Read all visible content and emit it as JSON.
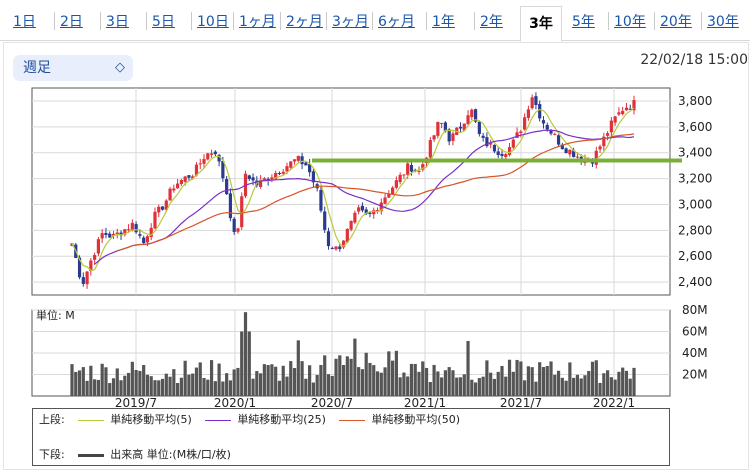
{
  "tabs": [
    {
      "label": "1日",
      "active": false
    },
    {
      "label": "2日",
      "active": false
    },
    {
      "label": "3日",
      "active": false
    },
    {
      "label": "5日",
      "active": false
    },
    {
      "label": "10日",
      "active": false
    },
    {
      "label": "1ヶ月",
      "active": false
    },
    {
      "label": "2ヶ月",
      "active": false
    },
    {
      "label": "3ヶ月",
      "active": false
    },
    {
      "label": "6ヶ月",
      "active": false
    },
    {
      "label": "1年",
      "active": false
    },
    {
      "label": "2年",
      "active": false
    },
    {
      "label": "3年",
      "active": true
    },
    {
      "label": "5年",
      "active": false
    },
    {
      "label": "10年",
      "active": false
    },
    {
      "label": "20年",
      "active": false
    },
    {
      "label": "30年",
      "active": false
    }
  ],
  "period_select": {
    "value": "週足"
  },
  "timestamp": "22/02/18 15:00",
  "chart_data": [
    {
      "type": "candlestick",
      "x_ticks": [
        "2019/7",
        "2020/1",
        "2020/7",
        "2021/1",
        "2021/7",
        "2022/1"
      ],
      "y_ticks": [
        2400,
        2600,
        2800,
        3000,
        3200,
        3400,
        3600,
        3800
      ],
      "ylim": [
        2300,
        3900
      ],
      "grid": true,
      "support_line": {
        "value": 3340,
        "color": "#7ab03a",
        "from": "2020/7",
        "to": "end"
      },
      "series": [
        {
          "name": "単純移動平均(5)",
          "color": "#b8c93a"
        },
        {
          "name": "単純移動平均(25)",
          "color": "#7a2fc9"
        },
        {
          "name": "単純移動平均(50)",
          "color": "#d8552a"
        }
      ],
      "anchors": [
        2700,
        2380,
        2600,
        2780,
        2750,
        2800,
        2850,
        2700,
        2900,
        3000,
        3150,
        3200,
        3250,
        3380,
        3420,
        3150,
        2700,
        3250,
        3150,
        3200,
        3250,
        3300,
        3350,
        3300,
        3100,
        2700,
        2650,
        2800,
        2950,
        2900,
        3000,
        3100,
        3200,
        3300,
        3250,
        3450,
        3650,
        3500,
        3600,
        3750,
        3500,
        3450,
        3400,
        3450,
        3600,
        3850,
        3650,
        3550,
        3450,
        3400,
        3350,
        3350,
        3500,
        3650,
        3750,
        3780
      ]
    },
    {
      "type": "bar",
      "label": "単位: M",
      "y_ticks": [
        "20M",
        "40M",
        "60M",
        "80M"
      ],
      "ylim": [
        0,
        80
      ],
      "peaks": [
        {
          "x": "2020/1",
          "value": 78
        }
      ]
    }
  ],
  "legend": {
    "row1_label": "上段:",
    "row2_label": "下段:",
    "items": [
      {
        "name": "単純移動平均(5)",
        "color": "#b8c93a"
      },
      {
        "name": "単純移動平均(25)",
        "color": "#7a2fc9"
      },
      {
        "name": "単純移動平均(50)",
        "color": "#d8552a"
      }
    ],
    "volume_label": "出来高 単位:(M株/口/枚)"
  }
}
